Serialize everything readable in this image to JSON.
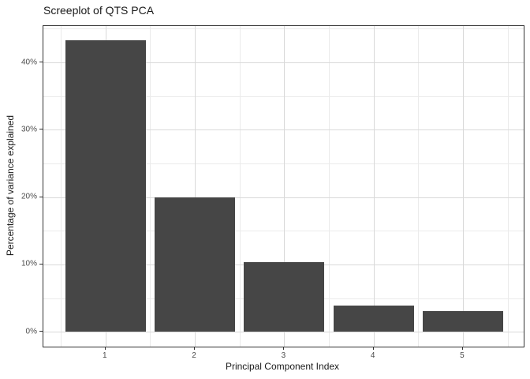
{
  "title": "Screeplot of QTS PCA",
  "chart_data": {
    "type": "bar",
    "title": "Screeplot of QTS PCA",
    "xlabel": "Principal Component Index",
    "ylabel": "Percentage of variance explained",
    "categories": [
      1,
      2,
      3,
      4,
      5
    ],
    "values": [
      43.3,
      20.0,
      10.4,
      3.9,
      3.1
    ],
    "x_tick_labels": [
      "1",
      "2",
      "3",
      "4",
      "5"
    ],
    "y_major_ticks": [
      0,
      10,
      20,
      30,
      40
    ],
    "y_tick_labels": [
      "0%",
      "10%",
      "20%",
      "30%",
      "40%"
    ],
    "y_minor_ticks": [
      5,
      15,
      25,
      35,
      45
    ],
    "ylim": [
      -2.2,
      45.4
    ],
    "xlim": [
      0.305,
      5.68
    ],
    "bar_width": 0.9,
    "grid": "major+minor",
    "legend_position": "none",
    "colors": {
      "bar_fill": "#464646",
      "grid_major": "#d9d9d9",
      "grid_minor": "#ebebeb",
      "panel_border": "#333333",
      "tick_mark": "#333333",
      "tick_label": "#4d4d4d",
      "text": "#1a1a1a",
      "background": "#ffffff"
    }
  }
}
